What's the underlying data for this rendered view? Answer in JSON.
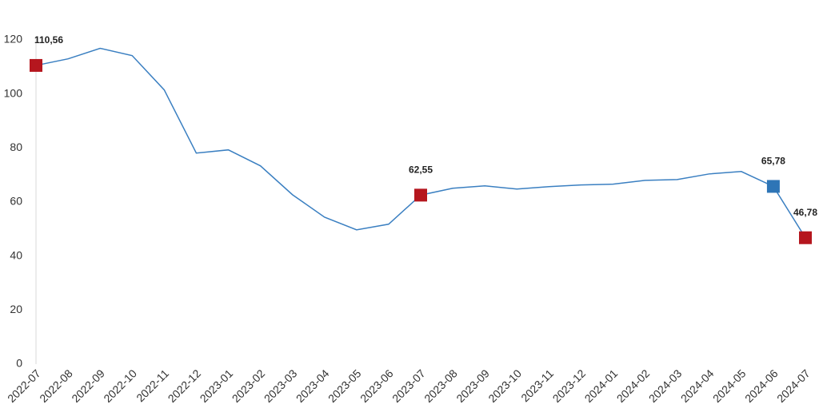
{
  "chart_data": {
    "type": "line",
    "categories": [
      "2022-07",
      "2022-08",
      "2022-09",
      "2022-10",
      "2022-11",
      "2022-12",
      "2023-01",
      "2023-02",
      "2023-03",
      "2023-04",
      "2023-05",
      "2023-06",
      "2023-07",
      "2023-08",
      "2023-09",
      "2023-10",
      "2023-11",
      "2023-12",
      "2024-01",
      "2024-02",
      "2024-03",
      "2024-04",
      "2024-05",
      "2024-06",
      "2024-07"
    ],
    "values": [
      110.56,
      113.0,
      116.9,
      114.2,
      101.5,
      78.1,
      79.3,
      73.4,
      62.7,
      54.4,
      49.7,
      51.8,
      62.55,
      65.1,
      66.0,
      64.8,
      65.7,
      66.3,
      66.6,
      68.0,
      68.3,
      70.4,
      71.3,
      65.78,
      46.78
    ],
    "value_labels": [
      "110,56",
      null,
      null,
      null,
      null,
      null,
      null,
      null,
      null,
      null,
      null,
      null,
      "62,55",
      null,
      null,
      null,
      null,
      null,
      null,
      null,
      null,
      null,
      null,
      "65,78",
      "46,78"
    ],
    "marker_colors": [
      "#b5161e",
      null,
      null,
      null,
      null,
      null,
      null,
      null,
      null,
      null,
      null,
      null,
      "#b5161e",
      null,
      null,
      null,
      null,
      null,
      null,
      null,
      null,
      null,
      null,
      "#2e75b6",
      "#b5161e"
    ],
    "color": "#3a7fc1",
    "ylim": [
      0,
      120
    ],
    "yticks": [
      0,
      20,
      40,
      60,
      80,
      100,
      120
    ],
    "grid": false
  }
}
